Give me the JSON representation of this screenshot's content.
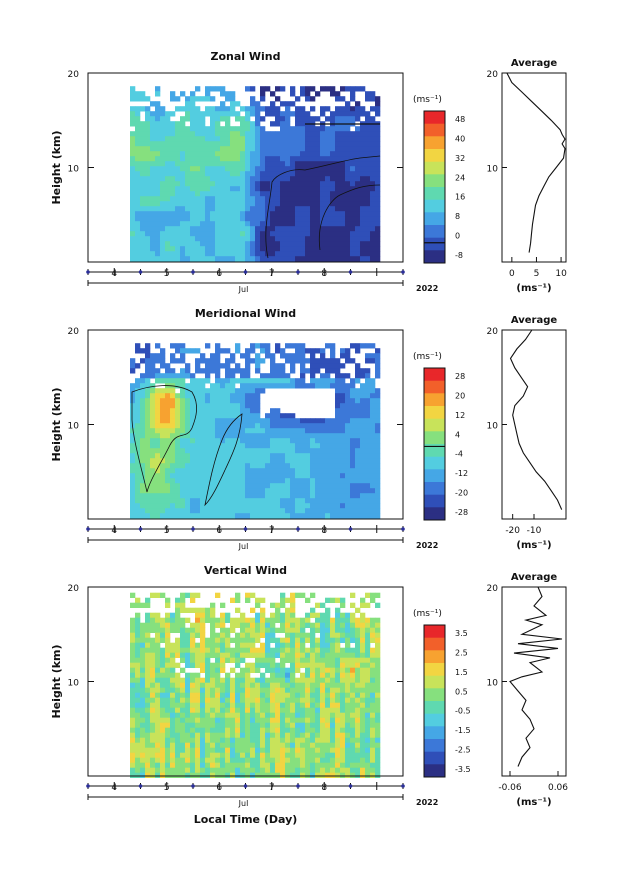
{
  "chart_data": [
    {
      "type": "heatmap",
      "title": "Zonal Wind",
      "ylabel": "Height (km)",
      "ylim": [
        0,
        20
      ],
      "yticks": [
        "20",
        "10"
      ],
      "xlim": [
        3.5,
        9.5
      ],
      "xticks": [
        "4",
        "5",
        "6",
        "7",
        "8"
      ],
      "month_label": "Jul",
      "year_label": "2022",
      "colorbar": {
        "unit": "(ms⁻¹)",
        "labels": [
          "48",
          "40",
          "32",
          "24",
          "16",
          "8",
          "0",
          "-8"
        ],
        "range": [
          -8,
          52
        ],
        "contour_level": 0
      },
      "profile": {
        "title": "Average",
        "xticks": [
          "0",
          "5",
          "10"
        ],
        "xlim": [
          -2,
          11
        ],
        "xlabel": "(ms⁻¹)",
        "points": [
          [
            3.5,
            1
          ],
          [
            3.8,
            2
          ],
          [
            4.0,
            3
          ],
          [
            4.2,
            4
          ],
          [
            4.5,
            5
          ],
          [
            4.8,
            6
          ],
          [
            5.5,
            7
          ],
          [
            6.5,
            8
          ],
          [
            7.5,
            9
          ],
          [
            9.0,
            10
          ],
          [
            10.5,
            11
          ],
          [
            10.8,
            12
          ],
          [
            10.2,
            12.5
          ],
          [
            10.8,
            13
          ],
          [
            10.2,
            13.5
          ],
          [
            9.8,
            14
          ],
          [
            8,
            15
          ],
          [
            6,
            16
          ],
          [
            4,
            17
          ],
          [
            2,
            18
          ],
          [
            0,
            19
          ],
          [
            -1,
            20
          ]
        ]
      }
    },
    {
      "type": "heatmap",
      "title": "Meridional Wind",
      "ylabel": "Height (km)",
      "ylim": [
        0,
        20
      ],
      "yticks": [
        "20",
        "10"
      ],
      "xlim": [
        3.5,
        9.5
      ],
      "xticks": [
        "4",
        "5",
        "6",
        "7",
        "8"
      ],
      "month_label": "Jul",
      "year_label": "2022",
      "colorbar": {
        "unit": "(ms⁻¹)",
        "labels": [
          "28",
          "20",
          "12",
          "4",
          "-4",
          "-12",
          "-20",
          "-28"
        ],
        "range": [
          -30,
          32
        ],
        "contour_level": 0
      },
      "profile": {
        "title": "Average",
        "xticks": [
          "-20",
          "-10"
        ],
        "xlim": [
          -25,
          5
        ],
        "xlabel": "(ms⁻¹)",
        "points": [
          [
            3,
            1
          ],
          [
            1,
            2
          ],
          [
            -2,
            3
          ],
          [
            -5,
            4
          ],
          [
            -9,
            5
          ],
          [
            -12,
            6
          ],
          [
            -15,
            7
          ],
          [
            -17,
            8
          ],
          [
            -18,
            9
          ],
          [
            -19,
            10
          ],
          [
            -20,
            11
          ],
          [
            -19,
            12
          ],
          [
            -15,
            13
          ],
          [
            -13,
            14
          ],
          [
            -16,
            15
          ],
          [
            -19,
            16
          ],
          [
            -21,
            17
          ],
          [
            -18,
            18
          ],
          [
            -14,
            19
          ],
          [
            -11,
            20
          ]
        ]
      }
    },
    {
      "type": "heatmap",
      "title": "Vertical Wind",
      "ylabel": "Height (km)",
      "xlabel": "Local Time (Day)",
      "ylim": [
        0,
        20
      ],
      "yticks": [
        "20",
        "10"
      ],
      "xlim": [
        3.5,
        9.5
      ],
      "xticks": [
        "4",
        "5",
        "6",
        "7",
        "8"
      ],
      "month_label": "Jul",
      "year_label": "2022",
      "colorbar": {
        "unit": "(ms⁻¹)",
        "labels": [
          "3.5",
          "2.5",
          "1.5",
          "0.5",
          "-0.5",
          "-1.5",
          "-2.5",
          "-3.5"
        ],
        "range": [
          -4,
          4
        ]
      },
      "profile": {
        "title": "Average",
        "xticks": [
          "-0.06",
          "0.06"
        ],
        "xlim": [
          -0.08,
          0.08
        ],
        "xlabel": "(ms⁻¹)",
        "points": [
          [
            -0.04,
            1
          ],
          [
            -0.03,
            2
          ],
          [
            -0.01,
            3
          ],
          [
            -0.02,
            4
          ],
          [
            0.0,
            5
          ],
          [
            -0.01,
            6
          ],
          [
            -0.03,
            7
          ],
          [
            -0.02,
            8
          ],
          [
            -0.04,
            9
          ],
          [
            -0.06,
            10
          ],
          [
            -0.03,
            10.5
          ],
          [
            0.02,
            11
          ],
          [
            -0.01,
            12
          ],
          [
            0.04,
            12.5
          ],
          [
            -0.05,
            13
          ],
          [
            0.06,
            13.5
          ],
          [
            -0.04,
            14
          ],
          [
            0.07,
            14.5
          ],
          [
            -0.03,
            15
          ],
          [
            0.02,
            16
          ],
          [
            -0.02,
            16.5
          ],
          [
            0.03,
            17
          ],
          [
            0.0,
            18
          ],
          [
            0.02,
            19
          ],
          [
            0.01,
            20
          ]
        ]
      }
    }
  ]
}
